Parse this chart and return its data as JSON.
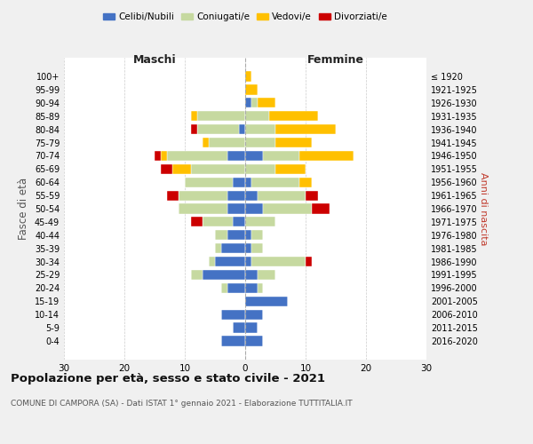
{
  "age_groups": [
    "100+",
    "95-99",
    "90-94",
    "85-89",
    "80-84",
    "75-79",
    "70-74",
    "65-69",
    "60-64",
    "55-59",
    "50-54",
    "45-49",
    "40-44",
    "35-39",
    "30-34",
    "25-29",
    "20-24",
    "15-19",
    "10-14",
    "5-9",
    "0-4"
  ],
  "birth_years": [
    "≤ 1920",
    "1921-1925",
    "1926-1930",
    "1931-1935",
    "1936-1940",
    "1941-1945",
    "1946-1950",
    "1951-1955",
    "1956-1960",
    "1961-1965",
    "1966-1970",
    "1971-1975",
    "1976-1980",
    "1981-1985",
    "1986-1990",
    "1991-1995",
    "1996-2000",
    "2001-2005",
    "2006-2010",
    "2011-2015",
    "2016-2020"
  ],
  "colors": {
    "celibe": "#4472c4",
    "coniugato": "#c6d9a0",
    "vedovo": "#ffc000",
    "divorziato": "#cc0000"
  },
  "males": {
    "celibe": [
      0,
      0,
      0,
      0,
      1,
      0,
      3,
      0,
      2,
      3,
      3,
      2,
      3,
      4,
      5,
      7,
      3,
      0,
      4,
      2,
      4
    ],
    "coniugato": [
      0,
      0,
      0,
      8,
      7,
      6,
      10,
      9,
      8,
      8,
      8,
      5,
      2,
      1,
      1,
      2,
      1,
      0,
      0,
      0,
      0
    ],
    "vedovo": [
      0,
      0,
      0,
      1,
      0,
      1,
      1,
      3,
      0,
      0,
      0,
      0,
      0,
      0,
      0,
      0,
      0,
      0,
      0,
      0,
      0
    ],
    "divorziato": [
      0,
      0,
      0,
      0,
      1,
      0,
      1,
      2,
      0,
      2,
      0,
      2,
      0,
      0,
      0,
      0,
      0,
      0,
      0,
      0,
      0
    ]
  },
  "females": {
    "nubile": [
      0,
      0,
      1,
      0,
      0,
      0,
      3,
      0,
      1,
      2,
      3,
      0,
      1,
      1,
      1,
      2,
      2,
      7,
      3,
      2,
      3
    ],
    "coniugata": [
      0,
      0,
      1,
      4,
      5,
      5,
      6,
      5,
      8,
      8,
      8,
      5,
      2,
      2,
      9,
      3,
      1,
      0,
      0,
      0,
      0
    ],
    "vedova": [
      1,
      2,
      3,
      8,
      10,
      6,
      9,
      5,
      2,
      0,
      0,
      0,
      0,
      0,
      0,
      0,
      0,
      0,
      0,
      0,
      0
    ],
    "divorziata": [
      0,
      0,
      0,
      0,
      0,
      0,
      0,
      0,
      0,
      2,
      3,
      0,
      0,
      0,
      1,
      0,
      0,
      0,
      0,
      0,
      0
    ]
  },
  "title": "Popolazione per età, sesso e stato civile - 2021",
  "subtitle": "COMUNE DI CAMPORA (SA) - Dati ISTAT 1° gennaio 2021 - Elaborazione TUTTITALIA.IT",
  "xlabel_left": "Maschi",
  "xlabel_right": "Femmine",
  "ylabel_left": "Fasce di età",
  "ylabel_right": "Anni di nascita",
  "xlim": 30,
  "bg_color": "#f0f0f0",
  "plot_bg_color": "#ffffff",
  "grid_color": "#cccccc"
}
